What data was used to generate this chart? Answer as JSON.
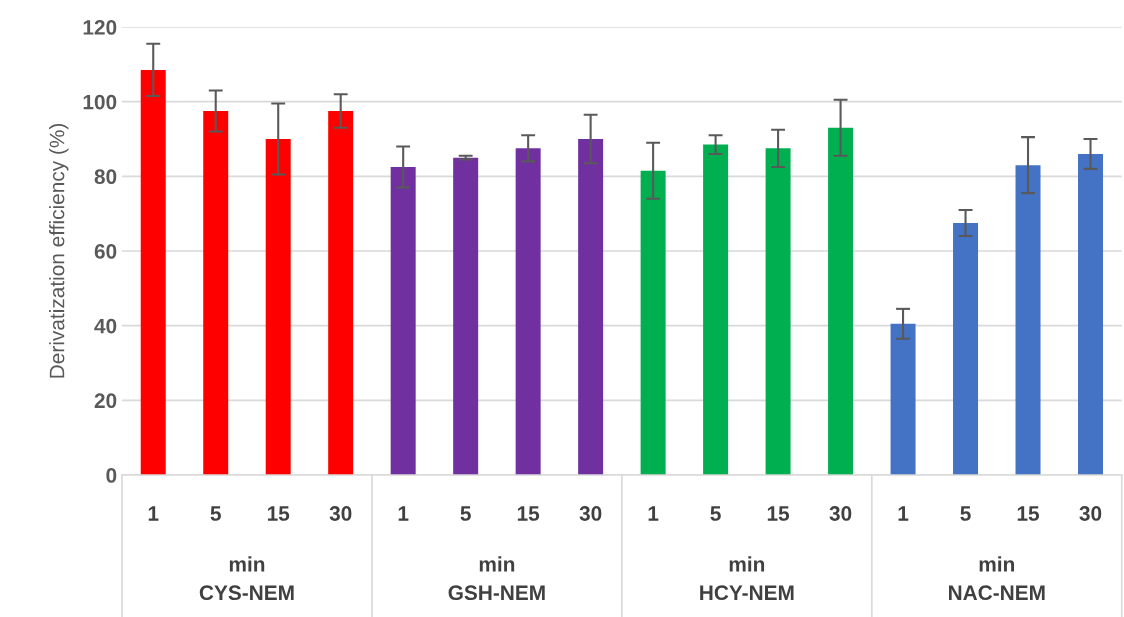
{
  "chart_data": {
    "type": "bar",
    "ylabel": "Derivatization efficiency (%)",
    "categories": [
      "1",
      "5",
      "15",
      "30",
      "1",
      "5",
      "15",
      "30",
      "1",
      "5",
      "15",
      "30",
      "1",
      "5",
      "15",
      "30"
    ],
    "values": [
      108.5,
      97.5,
      90,
      97.5,
      82.5,
      85,
      87.5,
      90,
      81.5,
      88.5,
      87.5,
      93,
      40.5,
      67.5,
      83,
      86
    ],
    "errors": [
      7,
      5.5,
      9.5,
      4.5,
      5.5,
      0.5,
      3.5,
      6.5,
      7.5,
      2.5,
      5,
      7.5,
      4,
      3.5,
      7.5,
      4
    ],
    "colors": [
      "#ff0000",
      "#ff0000",
      "#ff0000",
      "#ff0000",
      "#7030a0",
      "#7030a0",
      "#7030a0",
      "#7030a0",
      "#00b050",
      "#00b050",
      "#00b050",
      "#00b050",
      "#4472c4",
      "#4472c4",
      "#4472c4",
      "#4472c4"
    ],
    "annotations": [
      "min\nCYS-NEM",
      "min\nGSH-NEM",
      "min\nHCY-NEM",
      "min\nNAC-NEM"
    ],
    "ylim": [
      0,
      120
    ],
    "yticks": [
      0,
      20,
      40,
      60,
      80,
      100,
      120
    ],
    "grid": "y"
  }
}
